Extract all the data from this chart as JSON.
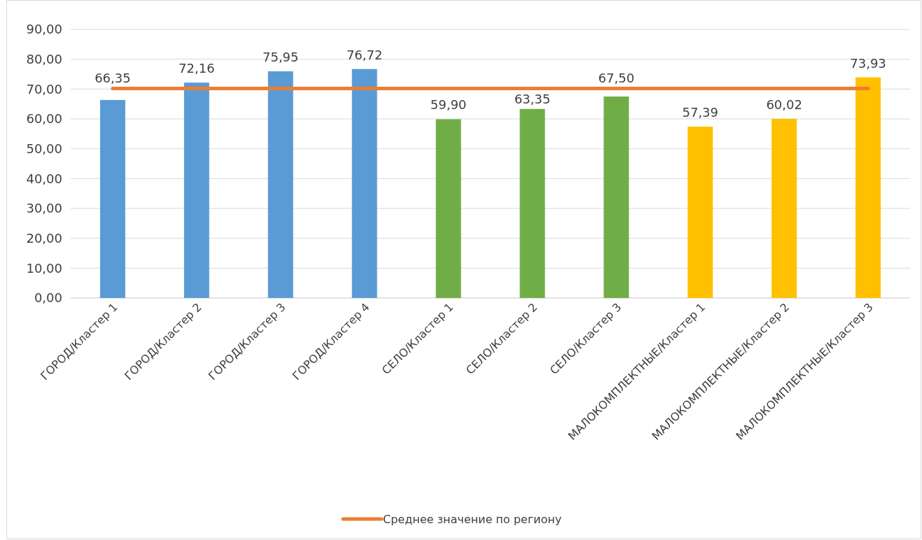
{
  "chart_data": {
    "type": "bar",
    "categories": [
      "ГОРОД/Кластер 1",
      "ГОРОД/Кластер 2",
      "ГОРОД/Кластер 3",
      "ГОРОД/Кластер 4",
      "СЕЛО/Кластер 1",
      "СЕЛО/Кластер 2",
      "СЕЛО/Кластер 3",
      "МАЛОКОМПЛЕКТНЫЕ/Кластер 1",
      "МАЛОКОМПЛЕКТНЫЕ/Кластер 2",
      "МАЛОКОМПЛЕКТНЫЕ/Кластер 3"
    ],
    "series": [
      {
        "type": "bar",
        "colors": [
          "#5b9bd5",
          "#5b9bd5",
          "#5b9bd5",
          "#5b9bd5",
          "#70ad47",
          "#70ad47",
          "#70ad47",
          "#ffc000",
          "#ffc000",
          "#ffc000"
        ],
        "values": [
          66.35,
          72.16,
          75.95,
          76.72,
          59.9,
          63.35,
          67.5,
          57.39,
          60.02,
          73.93
        ],
        "value_labels": [
          "66,35",
          "72,16",
          "75,95",
          "76,72",
          "59,90",
          "63,35",
          "67,50",
          "57,39",
          "60,02",
          "73,93"
        ]
      },
      {
        "type": "line",
        "name": "Среднее значение по региону",
        "color": "#ed7d31",
        "values": [
          70.2,
          70.2,
          70.2,
          70.2,
          70.2,
          70.2,
          70.2,
          70.2,
          70.2,
          70.2
        ]
      }
    ],
    "ylim": [
      0,
      90
    ],
    "yticks": [
      {
        "value": 0,
        "label": "0,00"
      },
      {
        "value": 10,
        "label": "10,00"
      },
      {
        "value": 20,
        "label": "20,00"
      },
      {
        "value": 30,
        "label": "30,00"
      },
      {
        "value": 40,
        "label": "40,00"
      },
      {
        "value": 50,
        "label": "50,00"
      },
      {
        "value": 60,
        "label": "60,00"
      },
      {
        "value": 70,
        "label": "70,00"
      },
      {
        "value": 80,
        "label": "80,00"
      },
      {
        "value": 90,
        "label": "90,00"
      }
    ],
    "grid": "y",
    "legend": "bottom",
    "marker": "none",
    "line_style": "solid"
  }
}
